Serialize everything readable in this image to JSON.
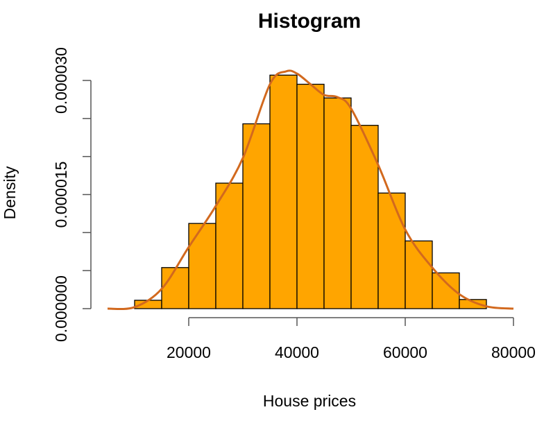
{
  "chart_data": {
    "type": "histogram",
    "title": "Histogram",
    "xlabel": "House prices",
    "ylabel": "Density",
    "bin_edges": [
      10000,
      15000,
      20000,
      25000,
      30000,
      35000,
      40000,
      45000,
      50000,
      55000,
      60000,
      65000,
      70000,
      75000
    ],
    "densities": [
      1.1e-06,
      5.4e-06,
      1.12e-05,
      1.65e-05,
      2.43e-05,
      3.07e-05,
      2.95e-05,
      2.77e-05,
      2.41e-05,
      1.52e-05,
      8.9e-06,
      4.7e-06,
      1.2e-06
    ],
    "density_curve": {
      "x": [
        5000,
        10000,
        15000,
        20000,
        25000,
        30000,
        35000,
        38000,
        40000,
        42500,
        45000,
        47500,
        50000,
        55000,
        60000,
        65000,
        70000,
        75000,
        80000
      ],
      "y": [
        0.0,
        2e-07,
        2.6e-06,
        8.1e-06,
        1.35e-05,
        1.98e-05,
        2.95e-05,
        3.12e-05,
        3.09e-05,
        2.95e-05,
        2.81e-05,
        2.78e-05,
        2.63e-05,
        1.89e-05,
        1.04e-05,
        5.4e-06,
        1.9e-06,
        3e-07,
        0.0
      ]
    },
    "xlim": [
      5000,
      80000
    ],
    "ylim": [
      0,
      3e-05
    ],
    "x_ticks": [
      20000,
      40000,
      60000,
      80000
    ],
    "x_tick_labels": [
      "20000",
      "40000",
      "60000",
      "80000"
    ],
    "y_ticks": [
      0,
      5e-06,
      1e-05,
      1.5e-05,
      2e-05,
      2.5e-05,
      3e-05
    ],
    "y_tick_labels": [
      "0.000000",
      "",
      "",
      "0.000015",
      "",
      "",
      "0.000030"
    ],
    "colors": {
      "bar_fill": "#FFA500",
      "bar_stroke": "#000000",
      "curve": "#D2691E"
    }
  }
}
